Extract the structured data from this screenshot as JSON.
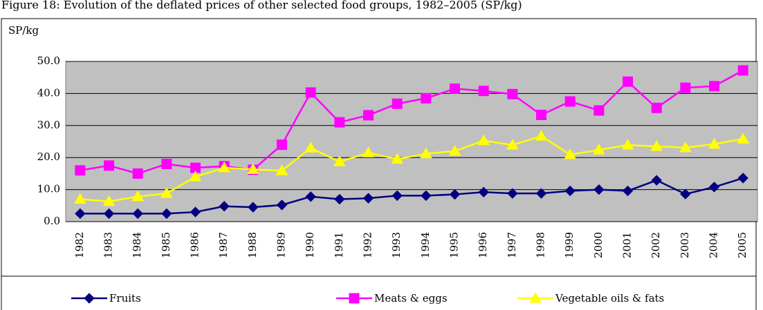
{
  "chart_data": {
    "type": "line",
    "title": "Figure 18: Evolution of the deflated prices of other selected food groups, 1982–2005 (SP/kg)",
    "y_label": "SP/kg",
    "categories": [
      "1982",
      "1983",
      "1984",
      "1985",
      "1986",
      "1987",
      "1988",
      "1989",
      "1990",
      "1991",
      "1992",
      "1993",
      "1994",
      "1995",
      "1996",
      "1997",
      "1998",
      "1999",
      "2000",
      "2001",
      "2002",
      "2003",
      "2004",
      "2005"
    ],
    "series": [
      {
        "name": "Fruits",
        "color": "#000080",
        "marker": "diamond",
        "values": [
          2.5,
          2.5,
          2.5,
          2.5,
          3,
          4.8,
          4.5,
          5.2,
          7.8,
          7,
          7.3,
          8.1,
          8.1,
          8.5,
          9.2,
          8.8,
          8.8,
          9.6,
          10,
          9.6,
          12.9,
          8.6,
          10.8,
          13.6
        ]
      },
      {
        "name": "Meats & eggs",
        "color": "#ff00ff",
        "marker": "square",
        "values": [
          16,
          17.5,
          15,
          18,
          16.8,
          17.3,
          16.2,
          24,
          40.3,
          31,
          33.2,
          36.8,
          38.5,
          41.5,
          40.8,
          39.8,
          33.3,
          37.5,
          34.7,
          43.7,
          35.5,
          41.8,
          42.3,
          47.2
        ]
      },
      {
        "name": "Vegetable oils & fats",
        "color": "#ffff00",
        "marker": "triangle",
        "values": [
          7,
          6.3,
          7.8,
          8.8,
          14,
          16.8,
          16.3,
          15.9,
          23,
          18.7,
          21.5,
          19.5,
          21.2,
          22,
          25.3,
          23.9,
          26.7,
          20.9,
          22.4,
          23.9,
          23.5,
          23.1,
          24.2,
          25.8
        ]
      }
    ],
    "ylim": [
      0,
      50
    ],
    "yticks": [
      {
        "value": 0,
        "label": "0.0"
      },
      {
        "value": 10,
        "label": "10.0"
      },
      {
        "value": 20,
        "label": "20.0"
      },
      {
        "value": 30,
        "label": "30.0"
      },
      {
        "value": 40,
        "label": "40.0"
      },
      {
        "value": 50,
        "label": "50.0"
      }
    ],
    "grid": true,
    "legend": "bottom",
    "plot_background": "#c0c0c0"
  }
}
